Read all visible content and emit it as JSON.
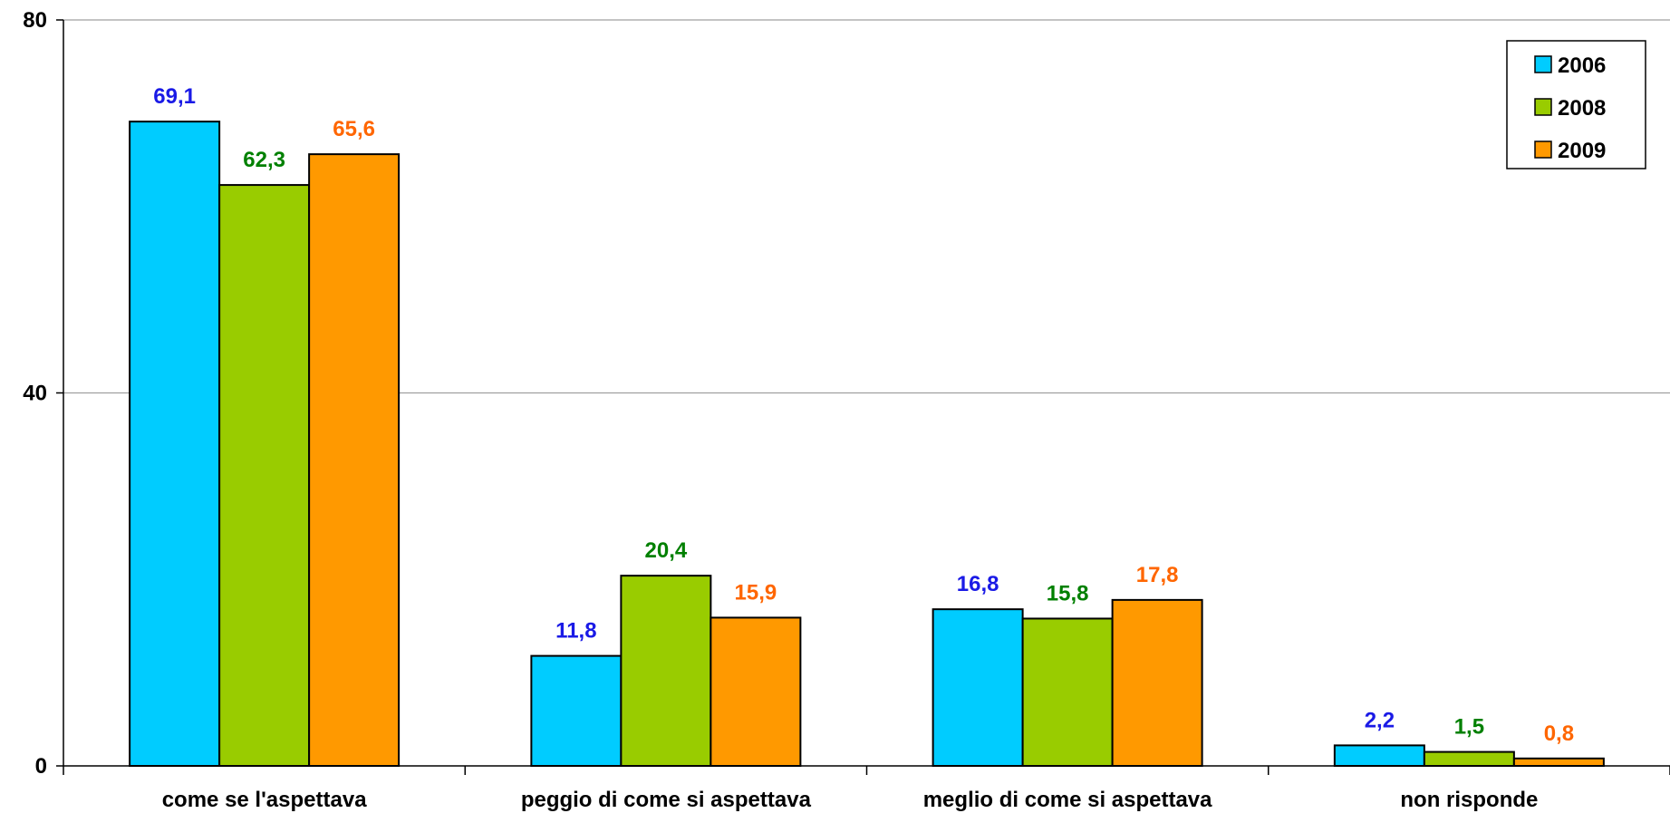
{
  "chart_data": {
    "type": "bar",
    "categories": [
      "come se l'aspettava",
      "peggio di come si aspettava",
      "meglio di come si aspettava",
      "non risponde"
    ],
    "series": [
      {
        "name": "2006",
        "values": [
          69.1,
          11.8,
          16.8,
          2.2
        ],
        "labels": [
          "69,1",
          "11,8",
          "16,8",
          "2,2"
        ],
        "color": "#00CCFF",
        "label_color": "#1A1AE6"
      },
      {
        "name": "2008",
        "values": [
          62.3,
          20.4,
          15.8,
          1.5
        ],
        "labels": [
          "62,3",
          "20,4",
          "15,8",
          "1,5"
        ],
        "color": "#99CC00",
        "label_color": "#008000"
      },
      {
        "name": "2009",
        "values": [
          65.6,
          15.9,
          17.8,
          0.8
        ],
        "labels": [
          "65,6",
          "15,9",
          "17,8",
          "0,8"
        ],
        "color": "#FF9900",
        "label_color": "#FF6600"
      }
    ],
    "yticks": [
      "0",
      "40",
      "80"
    ],
    "ylim": [
      0,
      80
    ],
    "grid": true,
    "legend_position": "top-right",
    "title": "",
    "xlabel": "",
    "ylabel": ""
  }
}
